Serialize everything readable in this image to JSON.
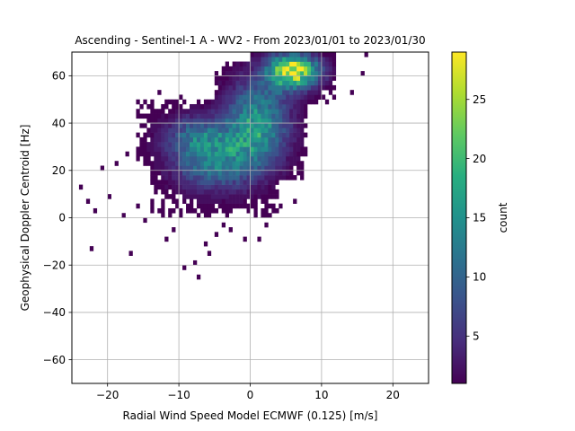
{
  "chart_data": {
    "type": "heatmap",
    "title": "Ascending - Sentinel-1 A - WV2 - From 2023/01/01 to 2023/01/30",
    "xlabel": "Radial Wind Speed Model ECMWF (0.125) [m/s]",
    "ylabel": "Geophysical Doppler Centroid [Hz]",
    "xlim": [
      -25,
      25
    ],
    "ylim": [
      -70,
      70
    ],
    "x_ticks": [
      -20,
      -10,
      0,
      10,
      20
    ],
    "y_ticks": [
      -60,
      -40,
      -20,
      0,
      20,
      40,
      60
    ],
    "grid": true,
    "bin_size": {
      "x": 0.5,
      "y": 2
    },
    "colormap": "viridis",
    "colorbar": {
      "label": "count",
      "min": 1,
      "max": 29,
      "ticks": [
        5,
        10,
        15,
        20,
        25
      ]
    },
    "density_clusters": [
      {
        "center": [
          -5,
          25
        ],
        "spread": [
          4,
          9
        ],
        "peak": 13,
        "extent": [
          -14,
          4,
          0,
          48
        ]
      },
      {
        "center": [
          1,
          40
        ],
        "spread": [
          3,
          12
        ],
        "peak": 16,
        "extent": [
          -5,
          8,
          16,
          66
        ]
      },
      {
        "center": [
          6,
          62
        ],
        "spread": [
          2.5,
          5
        ],
        "peak": 28,
        "extent": [
          0,
          12,
          48,
          70
        ]
      },
      {
        "center": [
          -8,
          35
        ],
        "spread": [
          3,
          6
        ],
        "peak": 7,
        "extent": [
          -16,
          -2,
          22,
          50
        ]
      }
    ],
    "outlier_bins": [
      [
        -24,
        13
      ],
      [
        -23,
        6
      ],
      [
        -22,
        2
      ],
      [
        -22.5,
        -13
      ],
      [
        -21,
        20
      ],
      [
        -20,
        9
      ],
      [
        -18,
        1
      ],
      [
        -17,
        -16
      ],
      [
        -15,
        -1
      ],
      [
        -12,
        -9
      ],
      [
        -11,
        -5
      ],
      [
        -9.5,
        -21
      ],
      [
        -8,
        -19
      ],
      [
        -7.5,
        -25
      ],
      [
        -6,
        -15
      ],
      [
        -6.5,
        -11
      ],
      [
        -5,
        -7
      ],
      [
        -4,
        -3
      ],
      [
        -3,
        -5
      ],
      [
        -1,
        -10
      ],
      [
        1,
        -9
      ],
      [
        2,
        -3
      ],
      [
        4,
        5
      ],
      [
        6,
        6
      ],
      [
        -13,
        52
      ],
      [
        -10,
        50
      ],
      [
        14,
        52
      ],
      [
        15.5,
        60
      ],
      [
        16,
        68
      ],
      [
        10,
        68
      ],
      [
        -17.5,
        26
      ],
      [
        -19,
        22
      ],
      [
        -16,
        5
      ],
      [
        -14,
        2
      ],
      [
        -10,
        3
      ]
    ]
  }
}
